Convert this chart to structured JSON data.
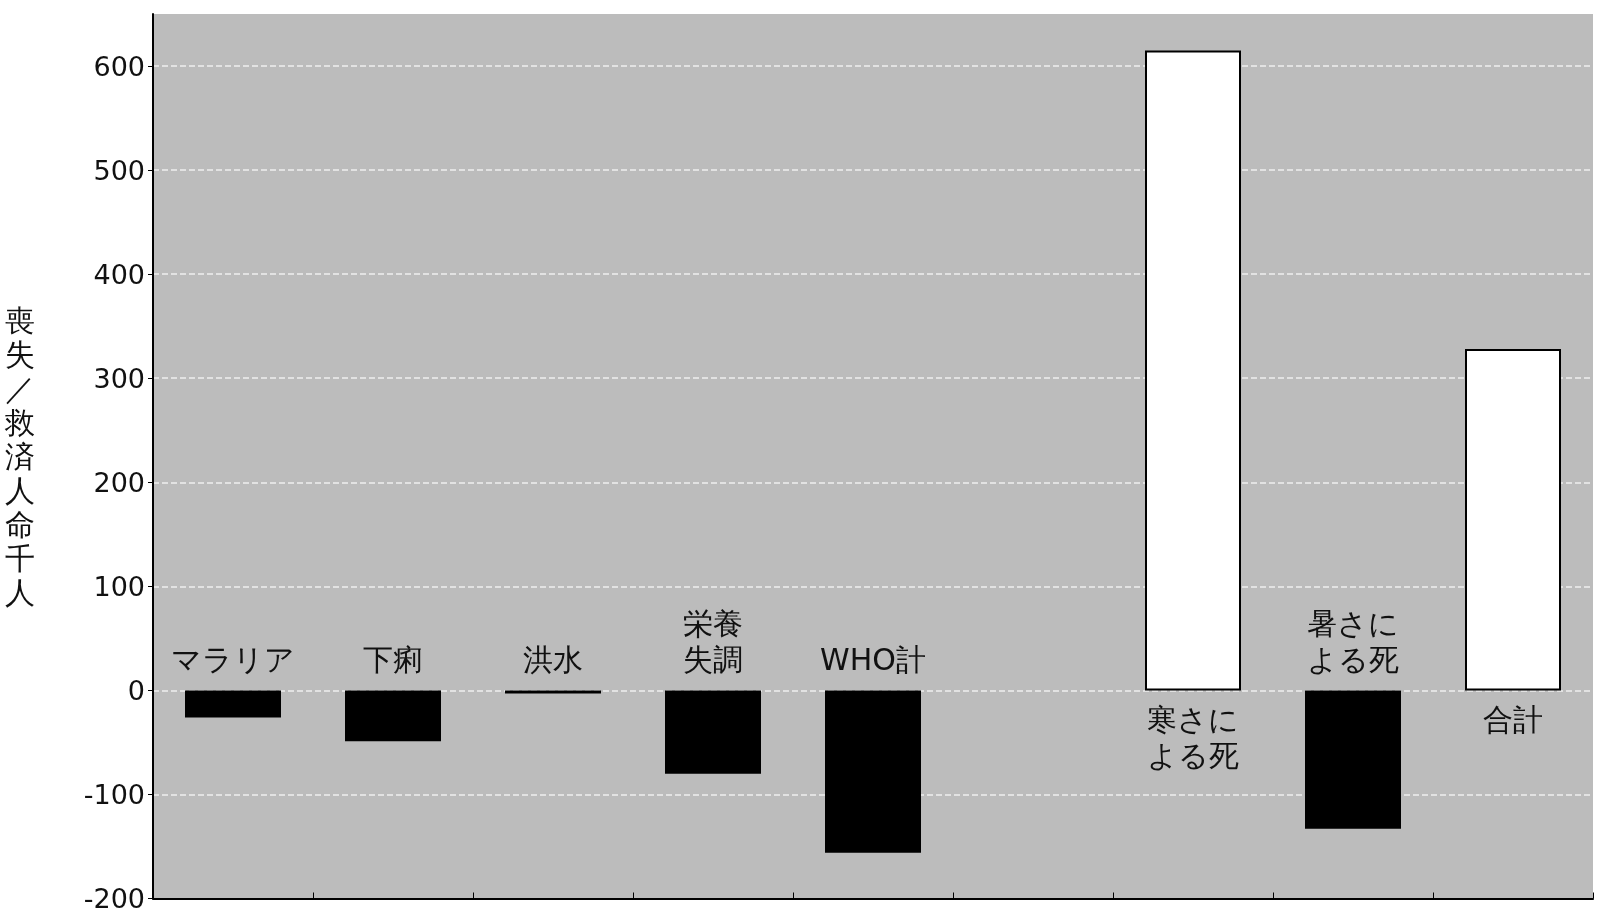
{
  "chart_data": {
    "type": "bar",
    "ylabel": "喪失／救済人命千人",
    "categories": [
      "マラリア",
      "下痢",
      "洪水",
      "栄養失調",
      "WHO計",
      null,
      "寒さによる死",
      "暑さによる死",
      "合計"
    ],
    "values": [
      -26,
      -49,
      -3,
      -80,
      -156,
      null,
      615,
      -133,
      328
    ],
    "colors": [
      "#000000",
      "#000000",
      "#000000",
      "#000000",
      "#000000",
      "#000000",
      "#ffffff",
      "#000000",
      "#ffffff"
    ],
    "ylim": [
      -200,
      650
    ],
    "yticks": [
      -200,
      -100,
      0,
      100,
      200,
      300,
      400,
      500,
      600
    ],
    "grid": "y"
  }
}
